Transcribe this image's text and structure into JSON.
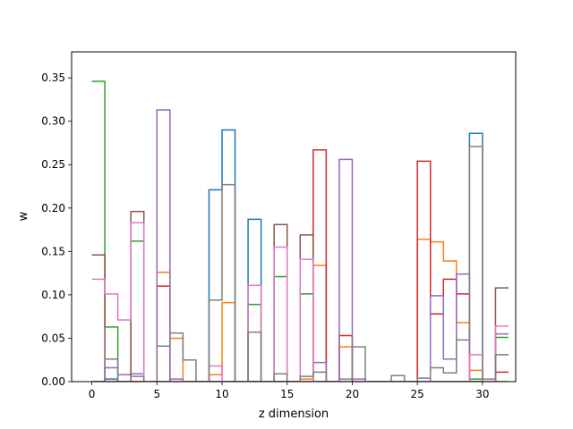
{
  "chart_data": {
    "type": "line",
    "step": "post",
    "title": "",
    "xlabel": "z dimension",
    "ylabel": "w",
    "xlim": [
      -1.55,
      32.55
    ],
    "ylim": [
      0,
      0.38
    ],
    "x": [
      0,
      1,
      2,
      3,
      4,
      5,
      6,
      7,
      8,
      9,
      10,
      11,
      12,
      13,
      14,
      15,
      16,
      17,
      18,
      19,
      20,
      21,
      22,
      23,
      24,
      25,
      26,
      27,
      28,
      29,
      30,
      31
    ],
    "x_ticks": [
      0,
      5,
      10,
      15,
      20,
      25,
      30
    ],
    "x_tick_labels": [
      "0",
      "5",
      "10",
      "15",
      "20",
      "25",
      "30"
    ],
    "y_ticks": [
      0.0,
      0.05,
      0.1,
      0.15,
      0.2,
      0.25,
      0.3,
      0.35
    ],
    "y_tick_labels": [
      "0.00",
      "0.05",
      "0.10",
      "0.15",
      "0.20",
      "0.25",
      "0.30",
      "0.35"
    ],
    "grid": false,
    "legend": "none",
    "series": [
      {
        "color": "#1f77b4",
        "values": [
          0,
          0.003,
          0,
          0,
          0,
          0,
          0,
          0,
          0,
          0.221,
          0.29,
          0,
          0.187,
          0,
          0,
          0,
          0,
          0,
          0,
          0,
          0,
          0,
          0,
          0,
          0,
          0,
          0,
          0,
          0,
          0.286,
          0,
          0
        ]
      },
      {
        "color": "#ff7f0e",
        "values": [
          0,
          0,
          0,
          0,
          0,
          0.126,
          0.05,
          0,
          0,
          0.008,
          0.091,
          0,
          0,
          0,
          0,
          0,
          0.003,
          0.134,
          0,
          0.04,
          0,
          0,
          0,
          0,
          0,
          0.164,
          0.161,
          0.139,
          0.068,
          0.013,
          0,
          0
        ]
      },
      {
        "color": "#2ca02c",
        "values": [
          0.346,
          0.063,
          0,
          0.162,
          0,
          0,
          0,
          0,
          0,
          0,
          0,
          0,
          0.089,
          0,
          0.121,
          0,
          0.101,
          0,
          0,
          0,
          0,
          0,
          0,
          0,
          0,
          0,
          0,
          0,
          0,
          0.003,
          0,
          0.051
        ]
      },
      {
        "color": "#d62728",
        "values": [
          0,
          0,
          0,
          0,
          0,
          0.11,
          0,
          0,
          0,
          0,
          0,
          0,
          0,
          0,
          0,
          0,
          0,
          0.267,
          0,
          0.053,
          0,
          0,
          0,
          0,
          0,
          0.254,
          0.078,
          0.118,
          0.101,
          0,
          0,
          0.011
        ]
      },
      {
        "color": "#9467bd",
        "values": [
          0,
          0.016,
          0.008,
          0.009,
          0,
          0.313,
          0.003,
          0,
          0,
          0,
          0,
          0,
          0,
          0,
          0,
          0,
          0,
          0.022,
          0,
          0.256,
          0.003,
          0,
          0,
          0,
          0,
          0,
          0.099,
          0.026,
          0.124,
          0,
          0,
          0.055
        ]
      },
      {
        "color": "#8c564b",
        "values": [
          0.146,
          0,
          0,
          0.196,
          0,
          0,
          0,
          0,
          0,
          0,
          0,
          0,
          0,
          0,
          0.181,
          0,
          0.169,
          0,
          0,
          0,
          0,
          0,
          0,
          0,
          0,
          0,
          0,
          0,
          0,
          0,
          0,
          0.108
        ]
      },
      {
        "color": "#e377c2",
        "values": [
          0.118,
          0.101,
          0.071,
          0.183,
          0,
          0,
          0,
          0,
          0,
          0.018,
          0,
          0,
          0.111,
          0,
          0.155,
          0,
          0.141,
          0,
          0,
          0,
          0,
          0,
          0,
          0,
          0,
          0,
          0,
          0,
          0,
          0.031,
          0,
          0.064
        ]
      },
      {
        "color": "#7f7f7f",
        "values": [
          0,
          0.026,
          0,
          0.006,
          0,
          0.041,
          0.056,
          0.025,
          0,
          0.094,
          0.227,
          0,
          0.057,
          0,
          0.009,
          0,
          0.006,
          0.011,
          0,
          0.003,
          0.04,
          0,
          0,
          0.007,
          0,
          0.004,
          0.016,
          0.01,
          0.048,
          0.271,
          0.003,
          0.031
        ]
      }
    ]
  }
}
